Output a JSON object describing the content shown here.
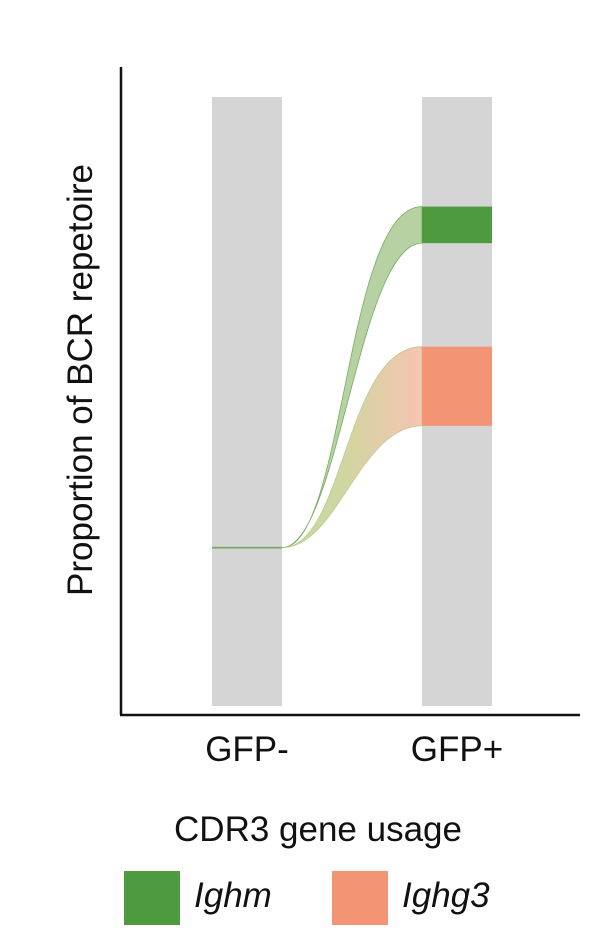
{
  "chart_data": {
    "type": "alluvial",
    "ylabel": "Proportion of BCR repetoire",
    "categories": [
      "GFP-",
      "GFP+"
    ],
    "ylim": [
      0,
      1
    ],
    "colors": {
      "bar": "#d6d5d6",
      "flow_green": "#6fa85a",
      "flow_green_fill": "#b4cf9e",
      "flow_blend": "#dcd3a8",
      "ighm": "#4e9a3f",
      "ighg3": "#f39575",
      "axis": "#111111"
    },
    "source": {
      "category": "GFP-",
      "level": 0.26
    },
    "segments": [
      {
        "name": "Ighm",
        "category": "GFP+",
        "bottom": 0.76,
        "top": 0.82,
        "color": "#4e9a3f"
      },
      {
        "name": "Ighg3",
        "category": "GFP+",
        "bottom": 0.46,
        "top": 0.59,
        "color": "#f39575"
      }
    ],
    "legend": {
      "title": "CDR3 gene usage",
      "items": [
        {
          "label": "Ighm",
          "color": "#4e9a3f"
        },
        {
          "label": "Ighg3",
          "color": "#f39575"
        }
      ]
    }
  }
}
